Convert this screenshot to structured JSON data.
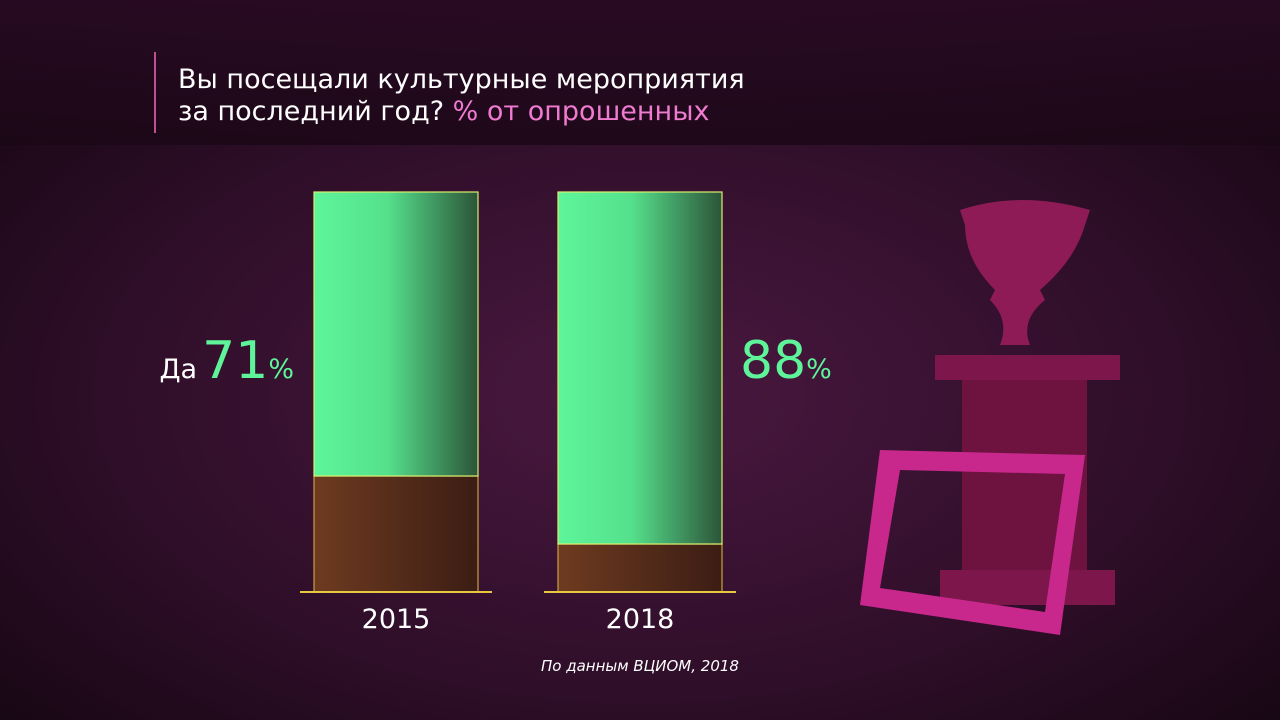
{
  "chart_data": {
    "type": "stacked-bar",
    "title": [
      "Вы посещали культурные мероприятия",
      "за последний год?"
    ],
    "subtitle": "% от опрошенных",
    "categories": [
      "2015",
      "2018"
    ],
    "unit": "%",
    "series": [
      {
        "name": "Да",
        "color": "#5ef59a",
        "values": [
          71,
          88
        ]
      },
      {
        "color": "#6b3a1f",
        "values": [
          29,
          12
        ]
      }
    ],
    "ylim": [
      0,
      100
    ],
    "source": "По данным ВЦИОМ, 2018"
  }
}
